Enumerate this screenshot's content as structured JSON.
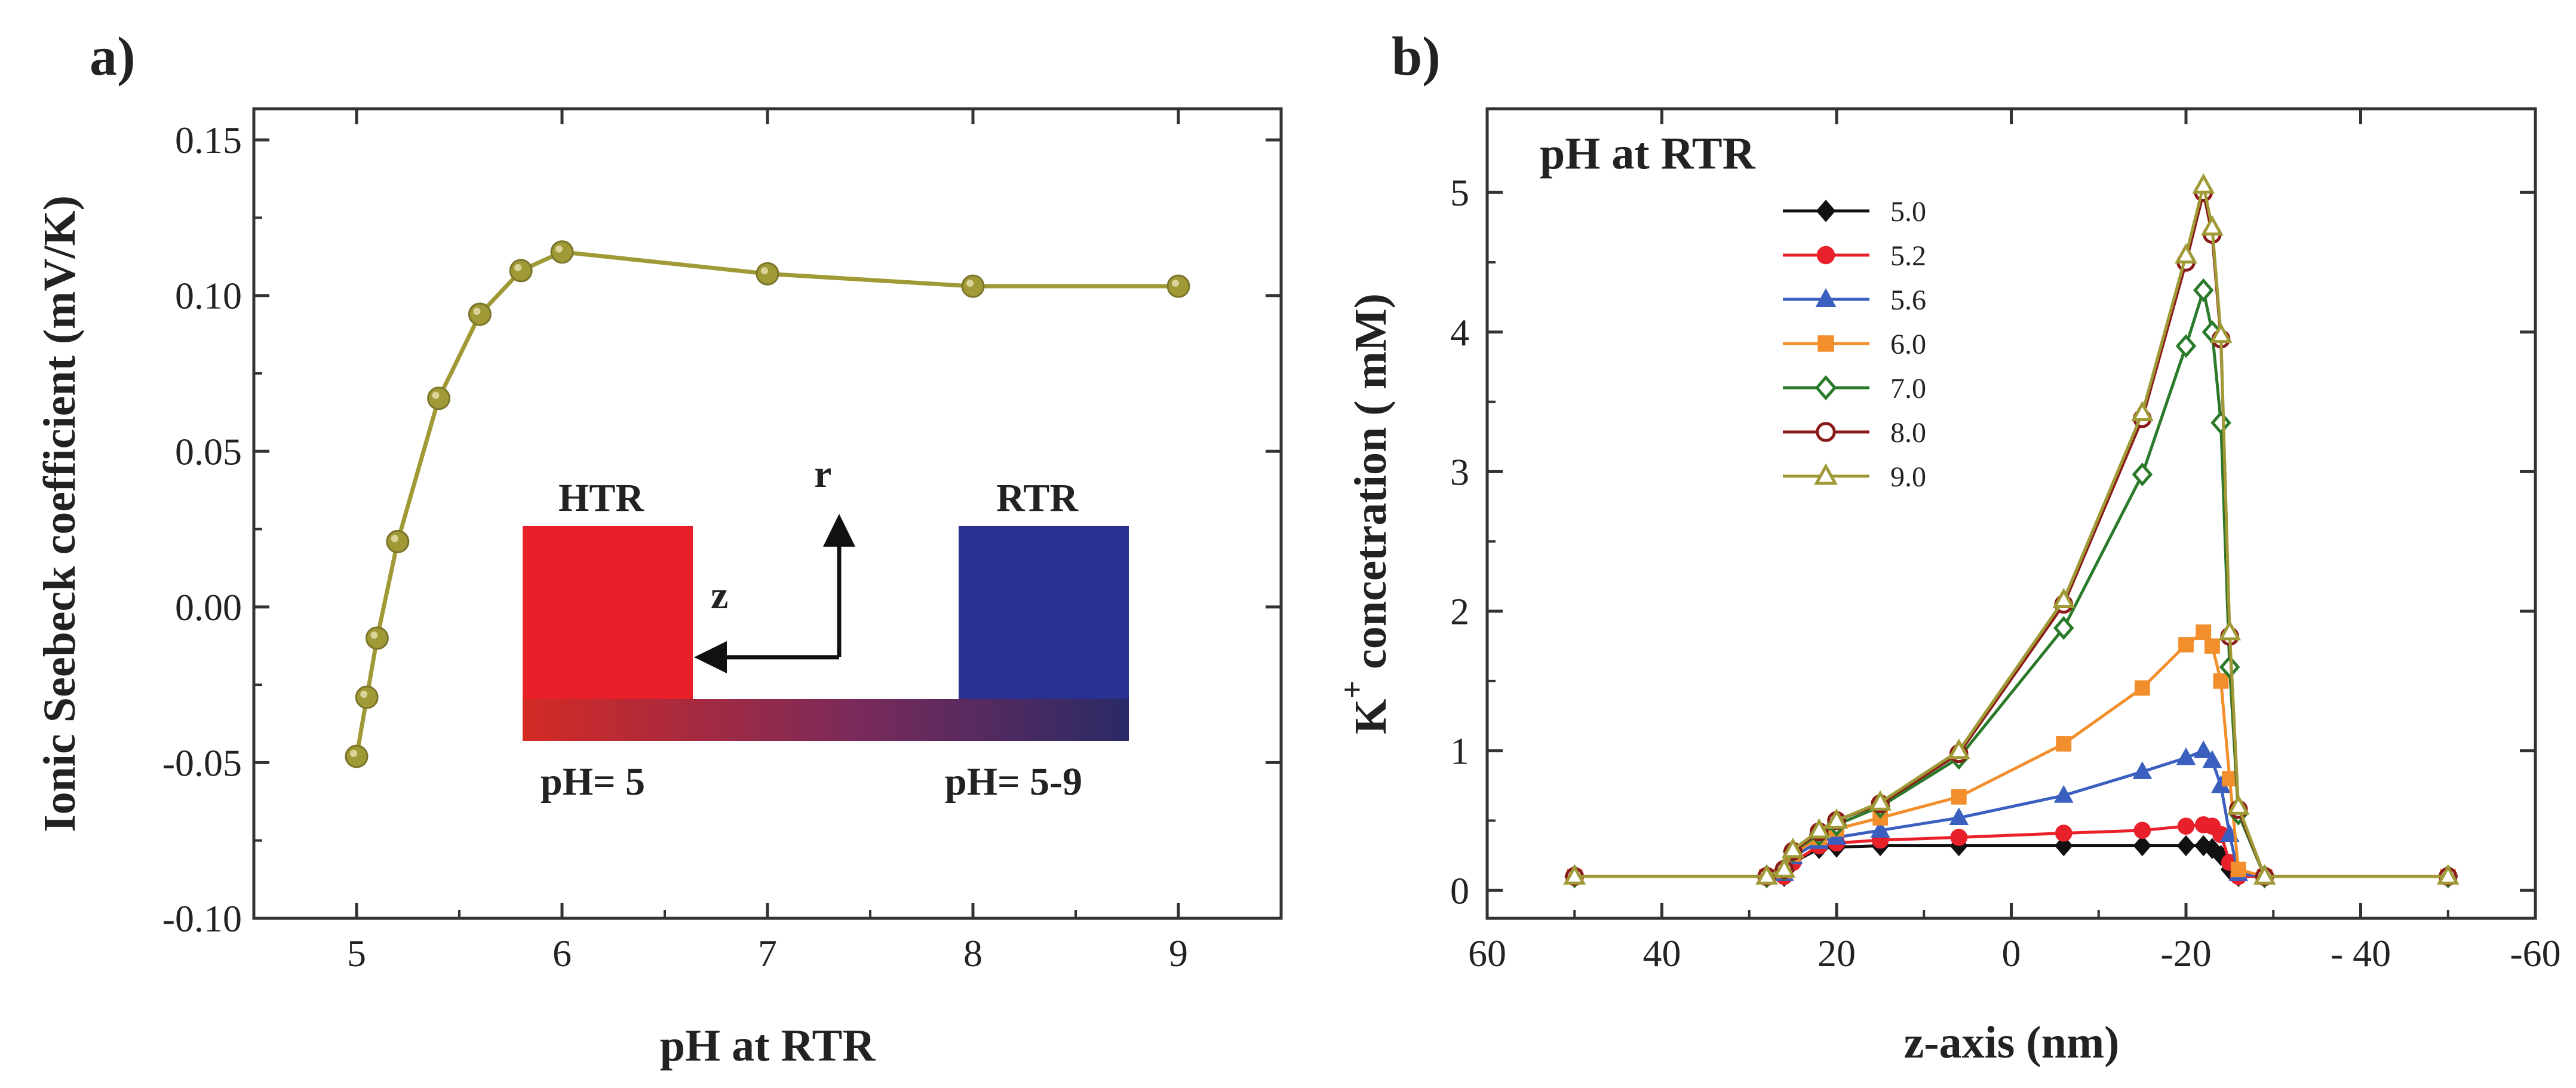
{
  "chart_data": [
    {
      "panel": "a)",
      "type": "line",
      "title": "",
      "xlabel": "pH at RTR",
      "ylabel": "Ionic Seebeck coefficient (mV/K)",
      "xlim": [
        4.5,
        9.5
      ],
      "ylim": [
        -0.1,
        0.16
      ],
      "xticks": [
        5,
        6,
        7,
        8,
        9
      ],
      "xtick_labels": [
        "5",
        "6",
        "7",
        "8",
        "9"
      ],
      "yticks": [
        -0.1,
        -0.05,
        0.0,
        0.05,
        0.1,
        0.15
      ],
      "ytick_labels": [
        "-0.10",
        "-0.05",
        "0.00",
        "0.05",
        "0.10",
        "0.15"
      ],
      "color": "#a09a36",
      "series": [
        {
          "name": "Seebeck",
          "x": [
            5.0,
            5.05,
            5.1,
            5.2,
            5.4,
            5.6,
            5.8,
            6.0,
            7.0,
            8.0,
            9.0
          ],
          "y": [
            -0.048,
            -0.029,
            -0.01,
            0.021,
            0.067,
            0.094,
            0.108,
            0.114,
            0.107,
            0.103,
            0.103
          ]
        }
      ],
      "inset": {
        "htr_label": "HTR",
        "rtr_label": "RTR",
        "r_label": "r",
        "z_label": "z",
        "ph_left": "pH= 5",
        "ph_right": "pH= 5-9",
        "htr_color": "#e8202a",
        "rtr_color": "#2b3190"
      }
    },
    {
      "panel": "b)",
      "type": "line",
      "title": "pH at RTR",
      "xlabel": "z-axis (nm)",
      "ylabel_main": "K",
      "ylabel_sup": "+",
      "ylabel_rest": " concetration ( mM)",
      "xlim": [
        60,
        -60
      ],
      "ylim": [
        -0.2,
        5.6
      ],
      "xticks": [
        60,
        40,
        20,
        0,
        -20,
        -40,
        -60
      ],
      "xtick_labels": [
        "60",
        "40",
        "20",
        "0",
        "-20",
        "- 40",
        "-60"
      ],
      "yticks": [
        0,
        1,
        2,
        3,
        4,
        5
      ],
      "ytick_labels": [
        "0",
        "1",
        "2",
        "3",
        "4",
        "5"
      ],
      "series": [
        {
          "name": "5.0",
          "color": "#111111",
          "marker": "diamond-filled",
          "x": [
            50,
            28,
            26,
            25,
            22,
            20,
            15,
            6,
            -6,
            -15,
            -20,
            -22,
            -23,
            -24,
            -25,
            -26,
            -29,
            -50
          ],
          "y": [
            0.1,
            0.1,
            0.1,
            0.2,
            0.3,
            0.31,
            0.32,
            0.32,
            0.32,
            0.32,
            0.32,
            0.32,
            0.3,
            0.25,
            0.15,
            0.1,
            0.1,
            0.1
          ]
        },
        {
          "name": "5.2",
          "color": "#e8202a",
          "marker": "circle-filled",
          "x": [
            50,
            28,
            26,
            25,
            22,
            20,
            15,
            6,
            -6,
            -15,
            -20,
            -22,
            -23,
            -24,
            -25,
            -26,
            -29,
            -50
          ],
          "y": [
            0.1,
            0.1,
            0.1,
            0.2,
            0.32,
            0.34,
            0.36,
            0.38,
            0.41,
            0.43,
            0.46,
            0.47,
            0.46,
            0.4,
            0.2,
            0.1,
            0.1,
            0.1
          ]
        },
        {
          "name": "5.6",
          "color": "#3a5fbf",
          "marker": "triangle-filled",
          "x": [
            50,
            28,
            26,
            25,
            22,
            20,
            15,
            6,
            -6,
            -15,
            -20,
            -22,
            -23,
            -24,
            -25,
            -26,
            -29,
            -50
          ],
          "y": [
            0.1,
            0.1,
            0.12,
            0.24,
            0.35,
            0.38,
            0.43,
            0.52,
            0.68,
            0.85,
            0.95,
            1.0,
            0.93,
            0.75,
            0.4,
            0.12,
            0.1,
            0.1
          ]
        },
        {
          "name": "6.0",
          "color": "#f28e2b",
          "marker": "square-filled",
          "x": [
            50,
            28,
            26,
            25,
            22,
            20,
            15,
            6,
            -6,
            -15,
            -20,
            -22,
            -23,
            -24,
            -25,
            -26,
            -29,
            -50
          ],
          "y": [
            0.1,
            0.1,
            0.14,
            0.26,
            0.38,
            0.44,
            0.52,
            0.67,
            1.05,
            1.45,
            1.76,
            1.85,
            1.75,
            1.5,
            0.8,
            0.15,
            0.1,
            0.1
          ]
        },
        {
          "name": "7.0",
          "color": "#2a7a2a",
          "marker": "diamond-open",
          "x": [
            50,
            28,
            26,
            25,
            22,
            20,
            15,
            6,
            -6,
            -15,
            -20,
            -22,
            -23,
            -24,
            -25,
            -26,
            -29,
            -50
          ],
          "y": [
            0.1,
            0.1,
            0.15,
            0.28,
            0.4,
            0.47,
            0.6,
            0.95,
            1.88,
            2.98,
            3.9,
            4.3,
            4.0,
            3.35,
            1.6,
            0.55,
            0.1,
            0.1
          ]
        },
        {
          "name": "8.0",
          "color": "#8b1a1a",
          "marker": "circle-open",
          "x": [
            50,
            28,
            26,
            25,
            22,
            20,
            15,
            6,
            -6,
            -15,
            -20,
            -22,
            -23,
            -24,
            -25,
            -26,
            -29,
            -50
          ],
          "y": [
            0.1,
            0.1,
            0.15,
            0.28,
            0.42,
            0.5,
            0.62,
            0.98,
            2.05,
            3.38,
            4.5,
            5.0,
            4.7,
            3.95,
            1.82,
            0.58,
            0.1,
            0.1
          ]
        },
        {
          "name": "9.0",
          "color": "#a09a36",
          "marker": "triangle-open",
          "x": [
            50,
            28,
            26,
            25,
            22,
            20,
            15,
            6,
            -6,
            -15,
            -20,
            -22,
            -23,
            -24,
            -25,
            -26,
            -29,
            -50
          ],
          "y": [
            0.1,
            0.1,
            0.15,
            0.29,
            0.43,
            0.5,
            0.63,
            1.0,
            2.08,
            3.42,
            4.55,
            5.05,
            4.75,
            3.98,
            1.85,
            0.6,
            0.1,
            0.1
          ]
        }
      ]
    }
  ]
}
